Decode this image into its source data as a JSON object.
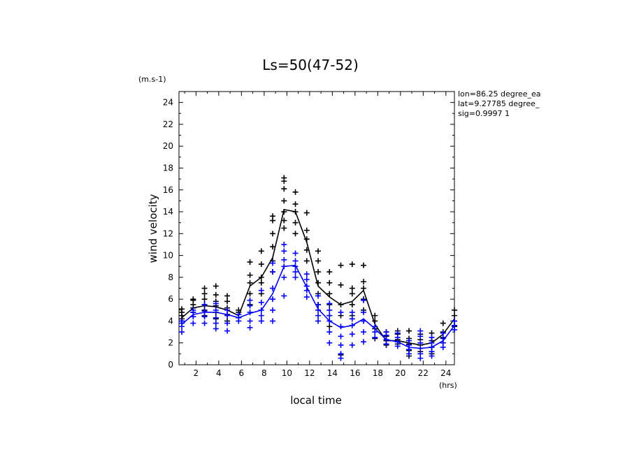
{
  "chart_data": {
    "type": "scatter",
    "title": "Ls=50(47-52)",
    "xlabel": "local time",
    "ylabel": "wind velocity",
    "y_unit": "(m.s-1)",
    "x_unit": "(hrs)",
    "annotations": [
      "lon=86.25 degree_ea",
      "lat=9.27785 degree_",
      "sig=0.9997 1"
    ],
    "xlim": [
      0.5,
      24.75
    ],
    "ylim": [
      0,
      25
    ],
    "x_ticks": [
      2,
      4,
      6,
      8,
      10,
      12,
      14,
      16,
      18,
      20,
      22,
      24
    ],
    "y_ticks": [
      0,
      2,
      4,
      6,
      8,
      10,
      12,
      14,
      16,
      18,
      20,
      22,
      24
    ],
    "grid": false,
    "series": [
      {
        "color": "#000000",
        "x": [
          0.75,
          1.75,
          2.75,
          3.75,
          4.75,
          5.75,
          6.75,
          7.75,
          8.75,
          9.75,
          10.75,
          11.75,
          12.75,
          13.75,
          14.75,
          15.75,
          16.75,
          17.75,
          18.75,
          19.75,
          20.75,
          21.75,
          22.75,
          23.75,
          24.75
        ],
        "mean": [
          4.3,
          5.2,
          5.4,
          5.3,
          5.0,
          4.5,
          7.2,
          8.0,
          9.8,
          14.2,
          14.0,
          11.2,
          7.2,
          6.2,
          5.5,
          5.8,
          6.8,
          3.7,
          2.2,
          2.2,
          2.0,
          1.8,
          2.0,
          2.8,
          4.2
        ],
        "points": [
          [
            4.0,
            4.5,
            5.1,
            4.8,
            4.2
          ],
          [
            4.8,
            5.5,
            5.9,
            5.2,
            6.0
          ],
          [
            4.5,
            5.0,
            5.5,
            6.0,
            6.5,
            7.0
          ],
          [
            4.2,
            4.8,
            5.4,
            5.8,
            6.4,
            7.2
          ],
          [
            4.0,
            4.6,
            5.2,
            5.8,
            6.3
          ],
          [
            4.3,
            4.8,
            5.0
          ],
          [
            5.5,
            6.5,
            7.5,
            8.2,
            9.4
          ],
          [
            6.5,
            7.5,
            8.0,
            9.2,
            10.4
          ],
          [
            8.5,
            9.5,
            10.8,
            12.0,
            13.2,
            13.6
          ],
          [
            12.5,
            13.2,
            14.0,
            15.0,
            16.1,
            16.8,
            17.1
          ],
          [
            12.0,
            13.0,
            14.0,
            14.7,
            15.8
          ],
          [
            9.5,
            10.5,
            11.5,
            12.3,
            13.9
          ],
          [
            5.5,
            6.5,
            7.5,
            8.5,
            9.5,
            10.4
          ],
          [
            3.5,
            4.5,
            5.5,
            6.5,
            7.5,
            8.5
          ],
          [
            0.9,
            4.5,
            5.5,
            7.3,
            9.1
          ],
          [
            4.5,
            5.5,
            6.5,
            7.0,
            9.2
          ],
          [
            5.0,
            6.0,
            7.0,
            7.6,
            9.1
          ],
          [
            2.4,
            3.3,
            4.0,
            4.5
          ],
          [
            1.8,
            2.2,
            2.6,
            3.0
          ],
          [
            1.9,
            2.3,
            2.8,
            3.1
          ],
          [
            0.8,
            1.3,
            1.9,
            2.4,
            3.1
          ],
          [
            1.2,
            1.8,
            2.3,
            2.8
          ],
          [
            1.0,
            1.6,
            2.2,
            2.9
          ],
          [
            2.0,
            2.5,
            3.0,
            3.8
          ],
          [
            3.5,
            4.0,
            4.5,
            5.0
          ]
        ]
      },
      {
        "color": "#0000ff",
        "x": [
          0.75,
          1.75,
          2.75,
          3.75,
          4.75,
          5.75,
          6.75,
          7.75,
          8.75,
          9.75,
          10.75,
          11.75,
          12.75,
          13.75,
          14.75,
          15.75,
          16.75,
          17.75,
          18.75,
          19.75,
          20.75,
          21.75,
          22.75,
          23.75,
          24.75
        ],
        "mean": [
          3.7,
          4.6,
          4.8,
          4.8,
          4.6,
          4.3,
          4.7,
          5.0,
          6.5,
          9.0,
          9.1,
          7.1,
          5.1,
          4.0,
          3.4,
          3.6,
          4.2,
          3.3,
          2.3,
          2.1,
          1.6,
          1.5,
          1.6,
          2.2,
          3.6
        ],
        "points": [
          [
            3.0,
            3.5,
            3.8,
            4.0
          ],
          [
            3.8,
            4.4,
            4.8,
            5.0
          ],
          [
            3.8,
            4.4,
            4.9,
            5.5
          ],
          [
            3.3,
            3.8,
            4.3,
            5.0,
            5.6
          ],
          [
            3.1,
            3.8,
            4.5,
            5.0
          ],
          [
            4.0,
            4.3,
            4.6
          ],
          [
            3.4,
            4.0,
            4.8,
            5.4,
            5.9
          ],
          [
            4.0,
            4.5,
            5.0,
            5.7,
            6.8
          ],
          [
            4.0,
            5.0,
            6.0,
            7.0,
            8.5,
            9.3
          ],
          [
            6.3,
            8.0,
            9.0,
            9.6,
            10.4,
            11.0
          ],
          [
            8.0,
            8.5,
            9.0,
            9.5,
            10.2
          ],
          [
            6.2,
            6.8,
            7.2,
            7.8,
            8.3
          ],
          [
            4.0,
            4.5,
            5.0,
            5.5,
            6.3
          ],
          [
            2.0,
            3.0,
            4.0,
            4.5,
            5.0,
            5.6
          ],
          [
            0.6,
            1.0,
            1.8,
            2.6,
            3.5,
            4.8
          ],
          [
            1.8,
            2.8,
            3.6,
            4.2,
            4.8
          ],
          [
            2.1,
            3.0,
            4.0,
            4.8,
            5.9
          ],
          [
            2.5,
            3.0,
            3.5
          ],
          [
            1.9,
            2.3,
            2.7,
            3.0
          ],
          [
            1.7,
            2.1,
            2.5,
            2.9
          ],
          [
            1.0,
            1.4,
            1.8,
            2.2
          ],
          [
            0.6,
            1.0,
            1.5,
            2.0,
            2.6,
            3.1
          ],
          [
            0.8,
            1.2,
            1.6,
            2.0,
            2.5
          ],
          [
            1.6,
            2.0,
            2.4,
            2.9
          ],
          [
            3.2,
            3.6,
            4.0
          ]
        ]
      }
    ]
  }
}
